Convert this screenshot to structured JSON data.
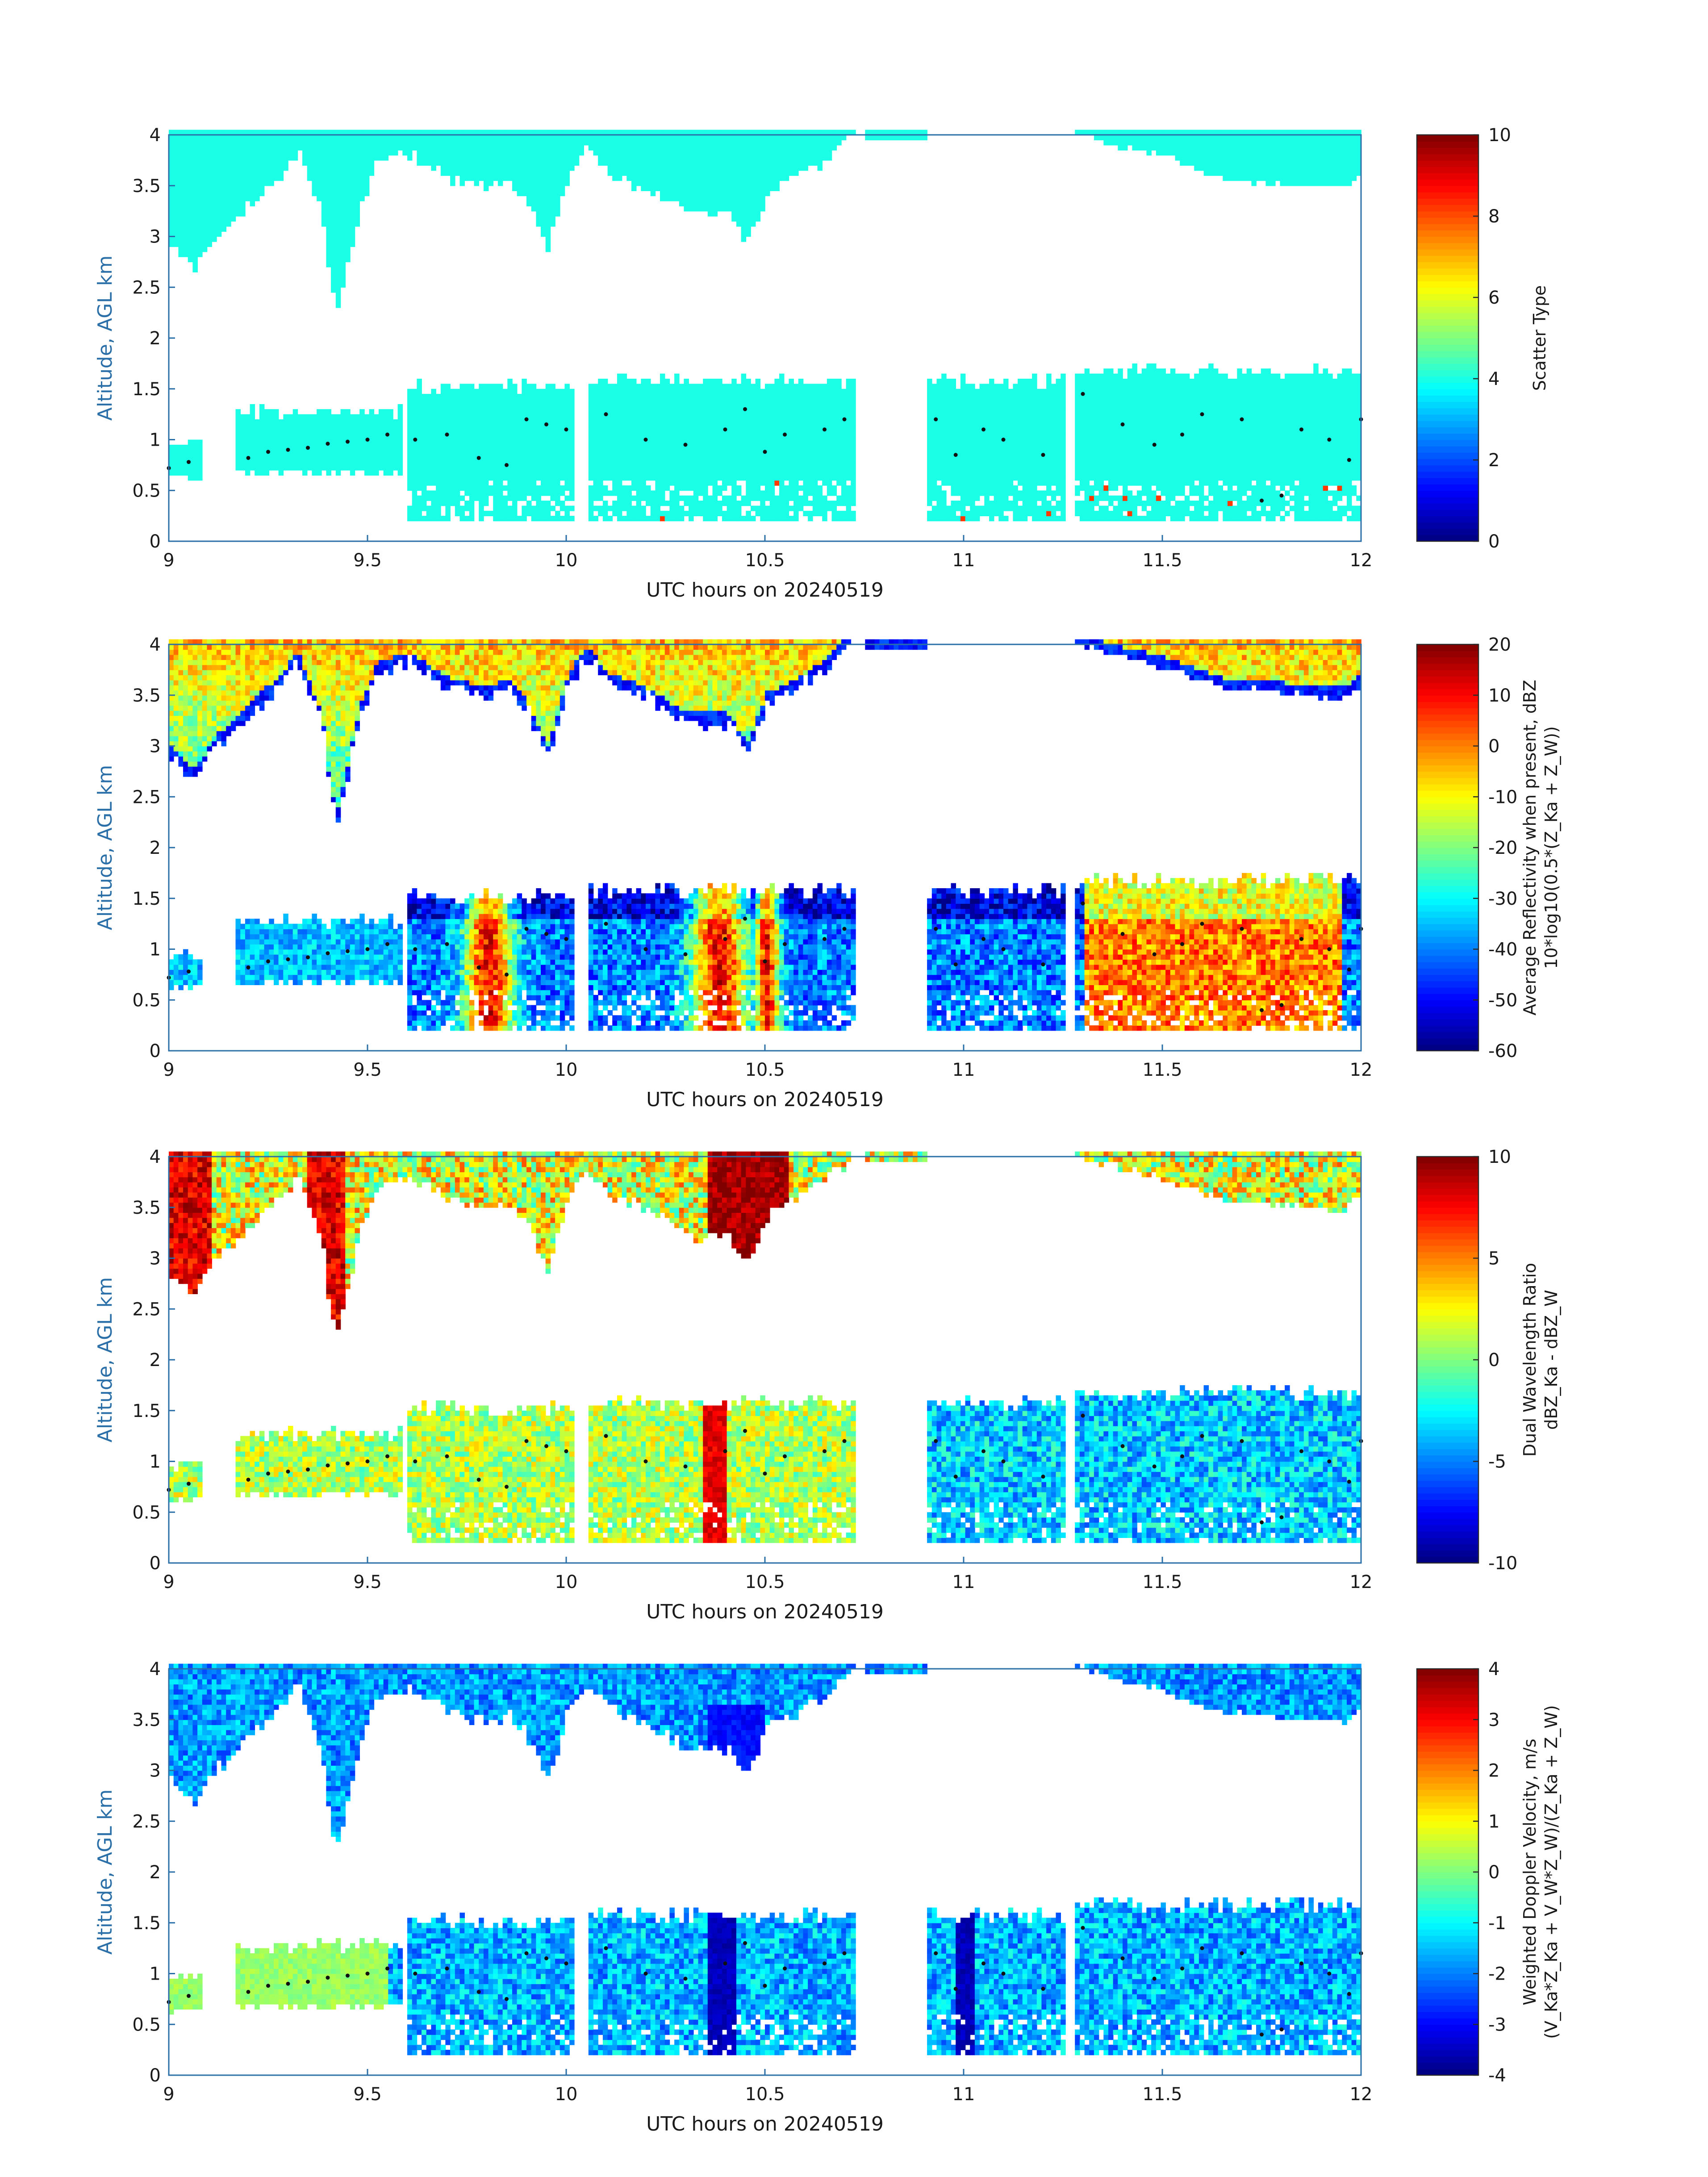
{
  "chart_data": [
    {
      "type": "heatmap",
      "variable": "scatter_type",
      "xlabel": "UTC hours on 20240519",
      "ylabel": "Altitude, AGL km",
      "xlim": [
        9,
        12
      ],
      "ylim": [
        0,
        4
      ],
      "xticks": [
        "9",
        "9.5",
        "10",
        "10.5",
        "11",
        "11.5",
        "12"
      ],
      "yticks": [
        "0",
        "0.5",
        "1",
        "1.5",
        "2",
        "2.5",
        "3",
        "3.5",
        "4"
      ],
      "colorbar": {
        "label": "Scatter Type",
        "label2": "",
        "range": [
          0,
          10
        ],
        "ticks": [
          "0",
          "2",
          "4",
          "6",
          "8",
          "10"
        ],
        "colormap": "jet"
      },
      "markers": "black dots marking cloud-base altitude"
    },
    {
      "type": "heatmap",
      "variable": "reflectivity",
      "xlabel": "UTC hours on 20240519",
      "ylabel": "Altitude, AGL km",
      "xlim": [
        9,
        12
      ],
      "ylim": [
        0,
        4
      ],
      "xticks": [
        "9",
        "9.5",
        "10",
        "10.5",
        "11",
        "11.5",
        "12"
      ],
      "yticks": [
        "0",
        "0.5",
        "1",
        "1.5",
        "2",
        "2.5",
        "3",
        "3.5",
        "4"
      ],
      "colorbar": {
        "label": "Average Reflectivity when present, dBZ",
        "label2": "10*log10(0.5*(Z_Ka + Z_W))",
        "range": [
          -60,
          20
        ],
        "ticks": [
          "-60",
          "-50",
          "-40",
          "-30",
          "-20",
          "-10",
          "0",
          "10",
          "20"
        ],
        "colormap": "jet"
      },
      "markers": "black dots marking cloud-base altitude"
    },
    {
      "type": "heatmap",
      "variable": "dwr",
      "xlabel": "UTC hours on 20240519",
      "ylabel": "Altitude, AGL km",
      "xlim": [
        9,
        12
      ],
      "ylim": [
        0,
        4
      ],
      "xticks": [
        "9",
        "9.5",
        "10",
        "10.5",
        "11",
        "11.5",
        "12"
      ],
      "yticks": [
        "0",
        "0.5",
        "1",
        "1.5",
        "2",
        "2.5",
        "3",
        "3.5",
        "4"
      ],
      "colorbar": {
        "label": "Dual Wavelength Ratio",
        "label2": "dBZ_Ka - dBZ_W",
        "range": [
          -10,
          10
        ],
        "ticks": [
          "-10",
          "-5",
          "0",
          "5",
          "10"
        ],
        "colormap": "jet"
      },
      "markers": "black dots marking cloud-base altitude"
    },
    {
      "type": "heatmap",
      "variable": "velocity",
      "xlabel": "UTC hours on 20240519",
      "ylabel": "Altitude, AGL km",
      "xlim": [
        9,
        12
      ],
      "ylim": [
        0,
        4
      ],
      "xticks": [
        "9",
        "9.5",
        "10",
        "10.5",
        "11",
        "11.5",
        "12"
      ],
      "yticks": [
        "0",
        "0.5",
        "1",
        "1.5",
        "2",
        "2.5",
        "3",
        "3.5",
        "4"
      ],
      "colorbar": {
        "label": "Weighted Doppler Velocity, m/s",
        "label2": "(V_Ka*Z_Ka + V_W*Z_W)/(Z_Ka + Z_W)",
        "range": [
          -4,
          4
        ],
        "ticks": [
          "-4",
          "-3",
          "-2",
          "-1",
          "0",
          "1",
          "2",
          "3",
          "4"
        ],
        "colormap": "jet"
      },
      "markers": "black dots marking cloud-base altitude"
    }
  ],
  "cloud_structure": {
    "upper_top_km": 4.0,
    "upper_base_profile": [
      [
        9.0,
        2.85
      ],
      [
        9.06,
        2.65
      ],
      [
        9.12,
        3.0
      ],
      [
        9.2,
        3.3
      ],
      [
        9.28,
        3.6
      ],
      [
        9.32,
        3.8
      ],
      [
        9.35,
        3.5
      ],
      [
        9.38,
        3.2
      ],
      [
        9.4,
        2.5
      ],
      [
        9.42,
        2.25
      ],
      [
        9.45,
        2.8
      ],
      [
        9.48,
        3.3
      ],
      [
        9.52,
        3.7
      ],
      [
        9.6,
        3.8
      ],
      [
        9.7,
        3.55
      ],
      [
        9.8,
        3.45
      ],
      [
        9.85,
        3.55
      ],
      [
        9.9,
        3.3
      ],
      [
        9.95,
        2.85
      ],
      [
        10.0,
        3.6
      ],
      [
        10.05,
        3.85
      ],
      [
        10.1,
        3.6
      ],
      [
        10.2,
        3.45
      ],
      [
        10.3,
        3.2
      ],
      [
        10.4,
        3.2
      ],
      [
        10.45,
        2.9
      ],
      [
        10.5,
        3.4
      ],
      [
        10.58,
        3.55
      ],
      [
        10.65,
        3.75
      ],
      [
        10.72,
        4.0
      ]
    ],
    "lower_segments": [
      {
        "start": 9.0,
        "end": 9.08,
        "base": 0.6,
        "top": 0.95
      },
      {
        "start": 9.16,
        "end": 9.58,
        "base": 0.65,
        "top": 1.25
      },
      {
        "start": 9.6,
        "end": 10.02,
        "base": 0.2,
        "top": 1.5
      },
      {
        "start": 10.05,
        "end": 10.72,
        "base": 0.2,
        "top": 1.55
      },
      {
        "start": 10.9,
        "end": 11.25,
        "base": 0.2,
        "top": 1.55
      },
      {
        "start": 11.28,
        "end": 12.0,
        "base": 0.2,
        "top": 1.65
      }
    ],
    "late_upper_base_profile": [
      [
        11.28,
        4.0
      ],
      [
        11.35,
        3.9
      ],
      [
        11.5,
        3.75
      ],
      [
        11.65,
        3.55
      ],
      [
        11.8,
        3.5
      ],
      [
        11.95,
        3.45
      ],
      [
        12.0,
        3.6
      ]
    ],
    "cloud_base_dots": [
      [
        9.0,
        0.72
      ],
      [
        9.05,
        0.78
      ],
      [
        9.2,
        0.82
      ],
      [
        9.25,
        0.88
      ],
      [
        9.3,
        0.9
      ],
      [
        9.35,
        0.92
      ],
      [
        9.4,
        0.96
      ],
      [
        9.45,
        0.98
      ],
      [
        9.5,
        1.0
      ],
      [
        9.55,
        1.05
      ],
      [
        9.62,
        1.0
      ],
      [
        9.7,
        1.05
      ],
      [
        9.78,
        0.82
      ],
      [
        9.85,
        0.75
      ],
      [
        9.9,
        1.2
      ],
      [
        9.95,
        1.15
      ],
      [
        10.0,
        1.1
      ],
      [
        10.1,
        1.25
      ],
      [
        10.2,
        1.0
      ],
      [
        10.3,
        0.95
      ],
      [
        10.4,
        1.1
      ],
      [
        10.45,
        1.3
      ],
      [
        10.5,
        0.88
      ],
      [
        10.55,
        1.05
      ],
      [
        10.65,
        1.1
      ],
      [
        10.7,
        1.2
      ],
      [
        10.93,
        1.2
      ],
      [
        10.98,
        0.85
      ],
      [
        11.05,
        1.1
      ],
      [
        11.1,
        1.0
      ],
      [
        11.2,
        0.85
      ],
      [
        11.3,
        1.45
      ],
      [
        11.4,
        1.15
      ],
      [
        11.48,
        0.95
      ],
      [
        11.55,
        1.05
      ],
      [
        11.6,
        1.25
      ],
      [
        11.7,
        1.2
      ],
      [
        11.75,
        0.4
      ],
      [
        11.8,
        0.45
      ],
      [
        11.85,
        1.1
      ],
      [
        11.92,
        1.0
      ],
      [
        11.97,
        0.8
      ],
      [
        12.0,
        1.2
      ]
    ]
  }
}
